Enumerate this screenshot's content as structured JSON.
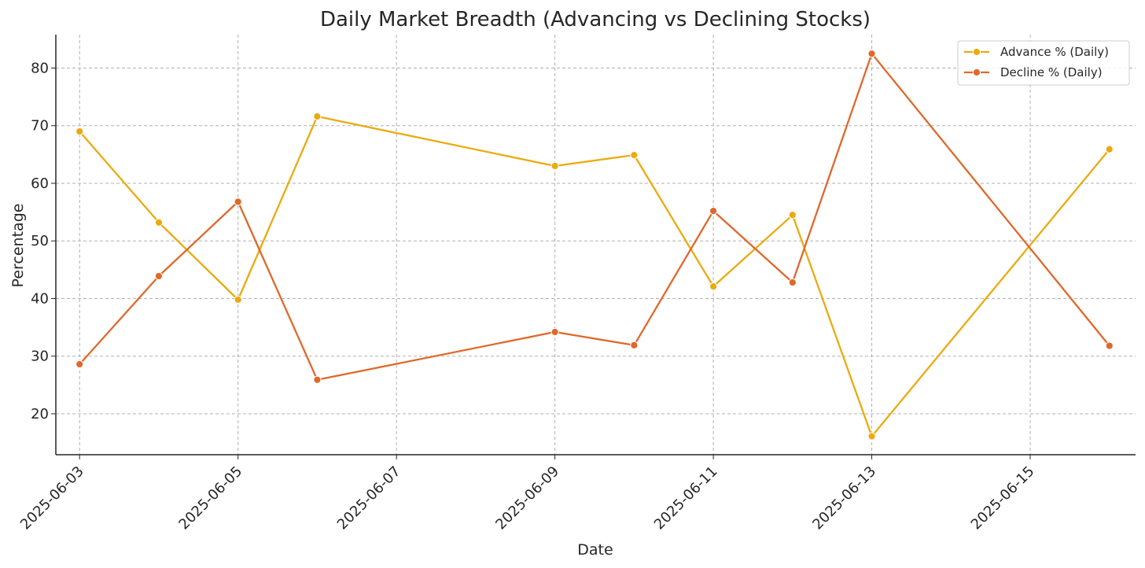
{
  "chart_data": {
    "type": "line",
    "title": "Daily Market Breadth (Advancing vs Declining Stocks)",
    "xlabel": "Date",
    "ylabel": "Percentage",
    "x": [
      "2025-06-03",
      "2025-06-04",
      "2025-06-05",
      "2025-06-06",
      "2025-06-09",
      "2025-06-10",
      "2025-06-11",
      "2025-06-12",
      "2025-06-13",
      "2025-06-16"
    ],
    "x_ticks": [
      "2025-06-03",
      "2025-06-05",
      "2025-06-07",
      "2025-06-09",
      "2025-06-11",
      "2025-06-13",
      "2025-06-15"
    ],
    "xlim": [
      "2025-06-02.7",
      "2025-06-16.33"
    ],
    "y_ticks": [
      20,
      30,
      40,
      50,
      60,
      70,
      80
    ],
    "ylim": [
      12.9,
      85.8
    ],
    "grid": true,
    "legend_position": "top-right",
    "series": [
      {
        "name": "Advance % (Daily)",
        "color": "#EBAA0F",
        "values": [
          69.0,
          53.2,
          39.8,
          71.6,
          63.0,
          64.9,
          42.1,
          54.5,
          16.1,
          65.9
        ]
      },
      {
        "name": "Decline % (Daily)",
        "color": "#E0682A",
        "values": [
          28.6,
          43.9,
          56.8,
          25.9,
          34.2,
          31.9,
          55.2,
          42.8,
          82.5,
          31.8
        ]
      }
    ]
  }
}
